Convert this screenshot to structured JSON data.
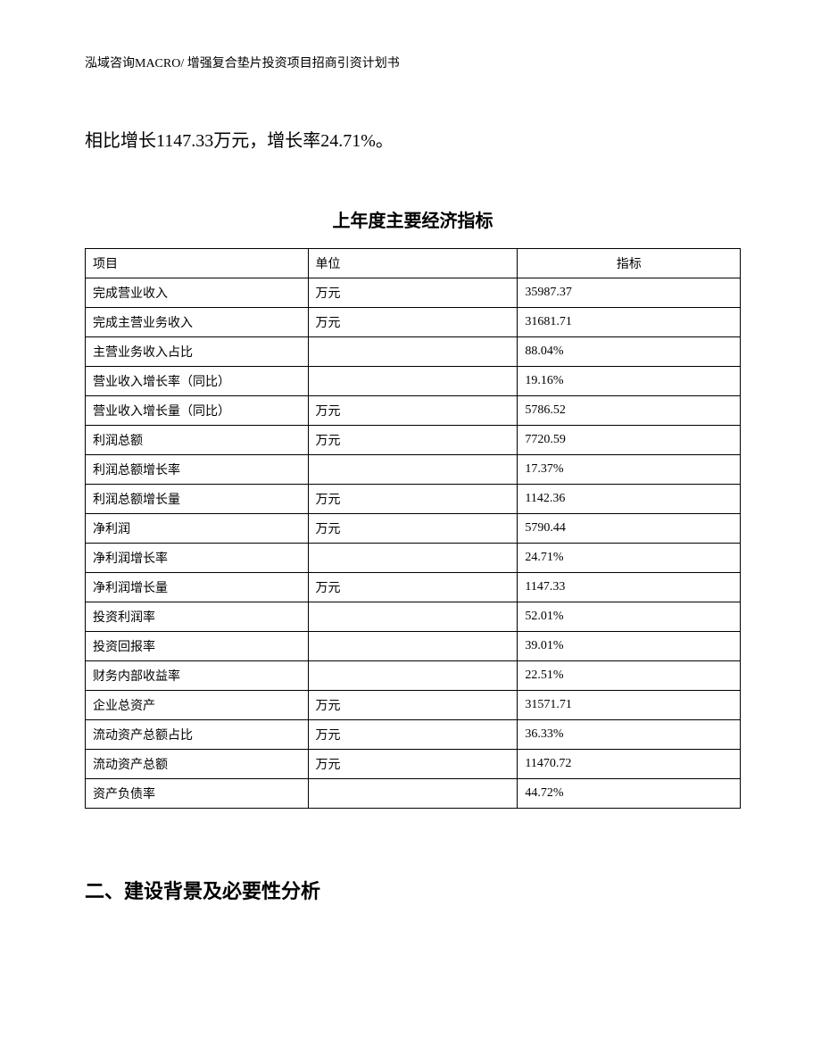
{
  "header": {
    "text": "泓域咨询MACRO/ 增强复合垫片投资项目招商引资计划书"
  },
  "paragraph": {
    "text": "相比增长1147.33万元，增长率24.71%。"
  },
  "table": {
    "title": "上年度主要经济指标",
    "columns": [
      "项目",
      "单位",
      "指标"
    ],
    "rows": [
      {
        "item": "完成营业收入",
        "unit": "万元",
        "value": "35987.37"
      },
      {
        "item": "完成主营业务收入",
        "unit": "万元",
        "value": "31681.71"
      },
      {
        "item": "主营业务收入占比",
        "unit": "",
        "value": "88.04%"
      },
      {
        "item": "营业收入增长率（同比）",
        "unit": "",
        "value": "19.16%"
      },
      {
        "item": "营业收入增长量（同比）",
        "unit": "万元",
        "value": "5786.52"
      },
      {
        "item": "利润总额",
        "unit": "万元",
        "value": "7720.59"
      },
      {
        "item": "利润总额增长率",
        "unit": "",
        "value": "17.37%"
      },
      {
        "item": "利润总额增长量",
        "unit": "万元",
        "value": "1142.36"
      },
      {
        "item": "净利润",
        "unit": "万元",
        "value": "5790.44"
      },
      {
        "item": "净利润增长率",
        "unit": "",
        "value": "24.71%"
      },
      {
        "item": "净利润增长量",
        "unit": "万元",
        "value": "1147.33"
      },
      {
        "item": "投资利润率",
        "unit": "",
        "value": "52.01%"
      },
      {
        "item": "投资回报率",
        "unit": "",
        "value": "39.01%"
      },
      {
        "item": "财务内部收益率",
        "unit": "",
        "value": "22.51%"
      },
      {
        "item": "企业总资产",
        "unit": "万元",
        "value": "31571.71"
      },
      {
        "item": "流动资产总额占比",
        "unit": "万元",
        "value": "36.33%"
      },
      {
        "item": "流动资产总额",
        "unit": "万元",
        "value": "11470.72"
      },
      {
        "item": "资产负债率",
        "unit": "",
        "value": "44.72%"
      }
    ]
  },
  "section": {
    "heading": "二、建设背景及必要性分析"
  }
}
